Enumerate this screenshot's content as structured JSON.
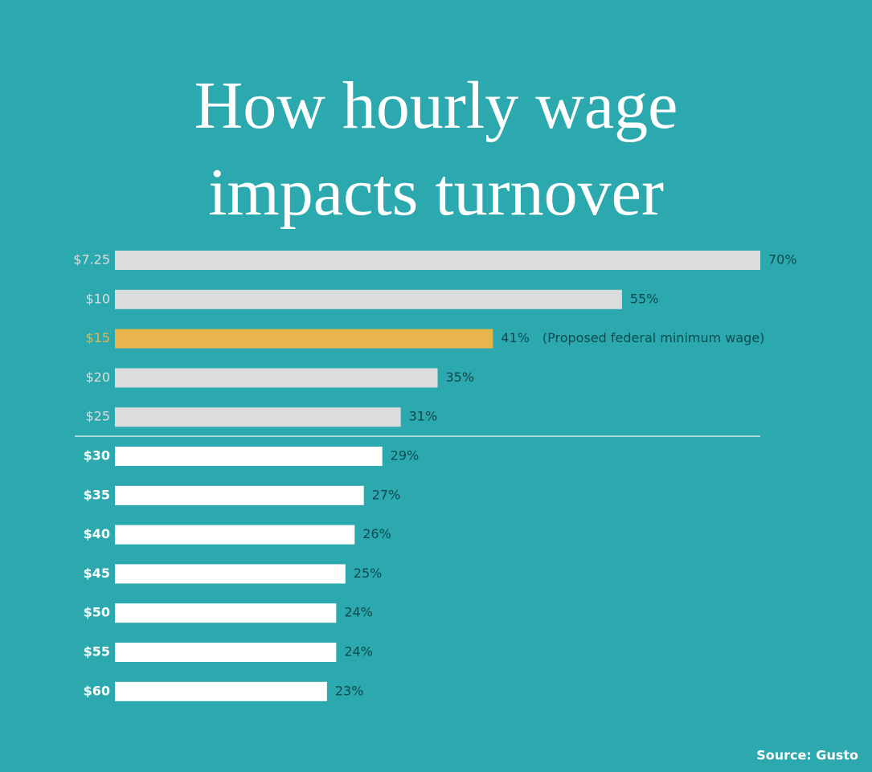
{
  "chart_data": {
    "type": "barh",
    "title": "How hourly wage impacts turnover",
    "categories": [
      "$7.25",
      "$10",
      "$15",
      "$20",
      "$25",
      "$30",
      "$35",
      "$40",
      "$45",
      "$50",
      "$55",
      "$60"
    ],
    "values": [
      70,
      55,
      41,
      35,
      31,
      29,
      27,
      26,
      25,
      24,
      24,
      23
    ],
    "value_labels": [
      "70%",
      "55%",
      "41%",
      "35%",
      "31%",
      "29%",
      "27%",
      "26%",
      "25%",
      "24%",
      "24%",
      "23%"
    ],
    "colors": [
      "#dcdcdc",
      "#dcdcdc",
      "#e8b54d",
      "#dcdcdc",
      "#dcdcdc",
      "#ffffff",
      "#ffffff",
      "#ffffff",
      "#ffffff",
      "#ffffff",
      "#ffffff",
      "#ffffff"
    ],
    "xlim": [
      0,
      70
    ],
    "annotation": {
      "category": "$15",
      "text": "(Proposed federal minimum wage)"
    },
    "source": "Source: Gusto"
  }
}
